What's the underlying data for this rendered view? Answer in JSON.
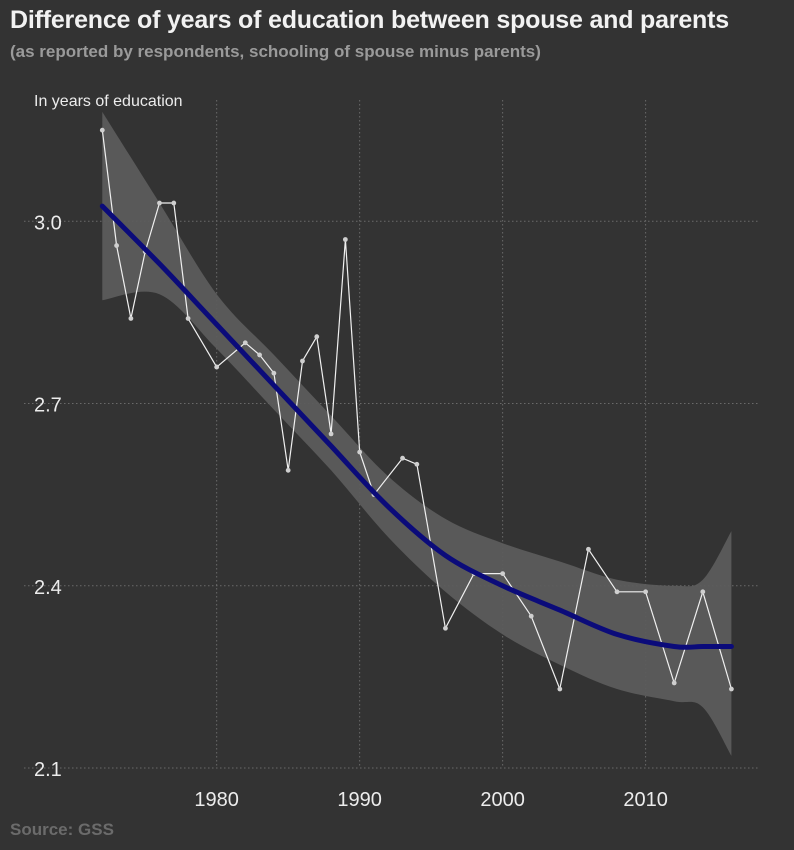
{
  "chart_data": {
    "type": "line",
    "title": "Difference of years of education between spouse and parents",
    "subtitle": "(as reported by respondents, schooling of spouse minus parents)",
    "ylabel": "In years of education",
    "xlabel": "",
    "source": "Source: GSS",
    "xlim": [
      1971,
      2018
    ],
    "ylim": [
      2.1,
      3.17
    ],
    "x_ticks": [
      1980,
      1990,
      2000,
      2010
    ],
    "y_ticks": [
      2.1,
      2.4,
      2.7,
      3.0
    ],
    "y_tick_labels": [
      "2.1",
      "2.4",
      "2.7",
      "3.0"
    ],
    "grid": true,
    "series": [
      {
        "kind": "observed",
        "color": "#f0f0f0",
        "x": [
          1972,
          1973,
          1974,
          1975,
          1976,
          1977,
          1978,
          1980,
          1982,
          1983,
          1984,
          1985,
          1986,
          1987,
          1988,
          1989,
          1990,
          1991,
          1993,
          1994,
          1996,
          1998,
          2000,
          2002,
          2004,
          2006,
          2008,
          2010,
          2012,
          2014,
          2016
        ],
        "values": [
          3.15,
          2.96,
          2.84,
          2.95,
          3.03,
          3.03,
          2.84,
          2.76,
          2.8,
          2.78,
          2.75,
          2.59,
          2.77,
          2.81,
          2.65,
          2.97,
          2.62,
          2.55,
          2.61,
          2.6,
          2.33,
          2.42,
          2.42,
          2.35,
          2.23,
          2.46,
          2.39,
          2.39,
          2.24,
          2.39,
          2.23
        ]
      },
      {
        "kind": "trend",
        "color": "#0b0b7a",
        "x": [
          1972,
          1976,
          1980,
          1984,
          1988,
          1992,
          1996,
          2000,
          2004,
          2008,
          2012,
          2014,
          2016
        ],
        "values": [
          3.025,
          2.93,
          2.83,
          2.73,
          2.63,
          2.53,
          2.45,
          2.4,
          2.36,
          2.32,
          2.3,
          2.3,
          2.3
        ],
        "ci_lower": [
          2.87,
          2.88,
          2.79,
          2.69,
          2.59,
          2.48,
          2.39,
          2.32,
          2.27,
          2.23,
          2.21,
          2.2,
          2.12
        ],
        "ci_upper": [
          3.18,
          3.03,
          2.88,
          2.78,
          2.68,
          2.58,
          2.51,
          2.47,
          2.44,
          2.41,
          2.4,
          2.41,
          2.49
        ]
      }
    ],
    "colors": {
      "background": "#333333",
      "grid": "#6a6a6a",
      "band": "#5c5c5c",
      "observed": "#f0f0f0",
      "trend": "#0b0b7a"
    }
  }
}
